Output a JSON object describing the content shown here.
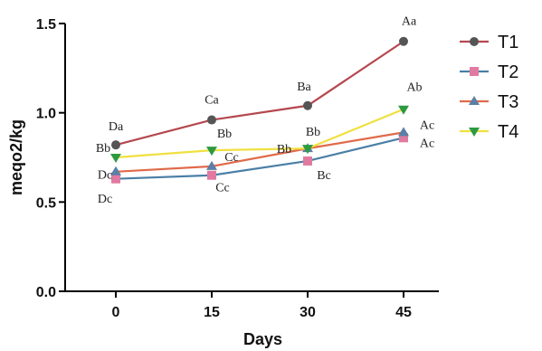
{
  "chart_data": {
    "type": "line",
    "x": [
      0,
      15,
      30,
      45
    ],
    "xlabel": "Days",
    "ylabel": "meqo2/kg",
    "ylim": [
      0,
      1.5
    ],
    "yticks": [
      "0.0",
      "0.5",
      "1.0",
      "1.5"
    ],
    "xticks": [
      "0",
      "15",
      "30",
      "45"
    ],
    "grid": false,
    "legend": "right",
    "series": [
      {
        "name": "T1",
        "color": "#b5484f",
        "marker": "circle",
        "marker_color": "#555555",
        "values": [
          0.82,
          0.96,
          1.04,
          1.4
        ],
        "labels": [
          "Da",
          "Ca",
          "Ba",
          "Aa"
        ]
      },
      {
        "name": "T2",
        "color": "#4a7fa6",
        "marker": "square",
        "marker_color": "#e07aa0",
        "values": [
          0.63,
          0.65,
          0.73,
          0.86
        ],
        "labels": [
          "Dc",
          "Cc",
          "Bc",
          "Ac"
        ]
      },
      {
        "name": "T3",
        "color": "#e06a4a",
        "marker": "triangle",
        "marker_color": "#5b7fa6",
        "values": [
          0.67,
          0.7,
          0.8,
          0.89
        ],
        "labels": [
          "Dc",
          "Cc",
          "Bb",
          "Ac"
        ]
      },
      {
        "name": "T4",
        "color": "#f0e040",
        "marker": "triangle-down",
        "marker_color": "#2e9a40",
        "values": [
          0.75,
          0.79,
          0.8,
          1.02
        ],
        "labels": [
          "Bb",
          "Bb",
          "Bb",
          "Ab"
        ]
      }
    ]
  }
}
